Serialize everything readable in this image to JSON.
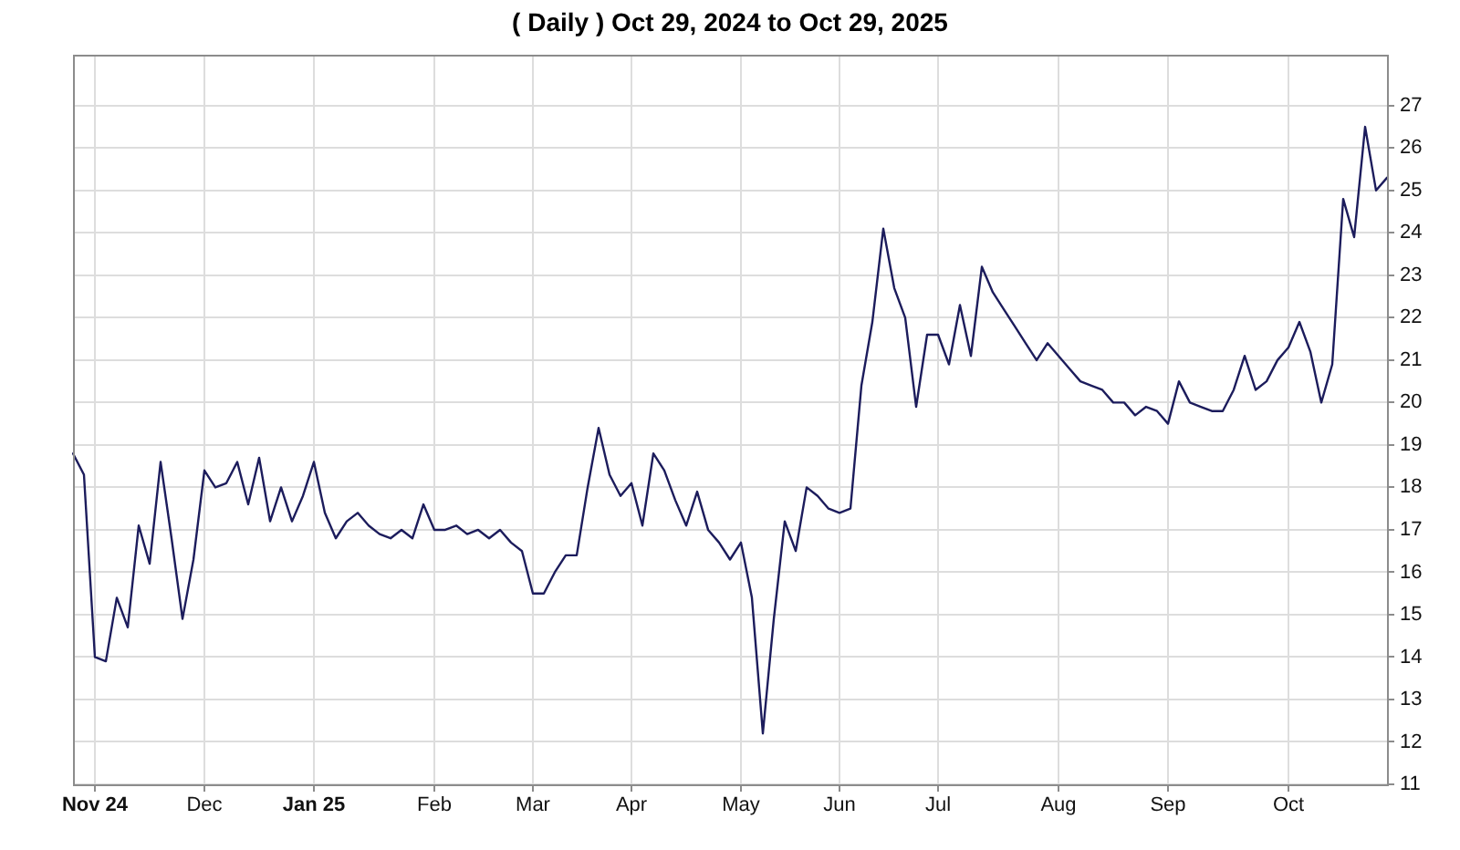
{
  "chart_data": {
    "type": "line",
    "title": "( Daily ) Oct 29, 2024 to Oct 29, 2025",
    "categories": [
      null,
      null,
      "Nov 24",
      null,
      null,
      null,
      null,
      null,
      null,
      null,
      null,
      null,
      "Dec",
      null,
      null,
      null,
      null,
      null,
      null,
      null,
      null,
      null,
      "Jan 25",
      null,
      null,
      null,
      null,
      null,
      null,
      null,
      null,
      null,
      null,
      "Feb",
      null,
      null,
      null,
      null,
      null,
      null,
      null,
      null,
      "Mar",
      null,
      null,
      null,
      null,
      null,
      null,
      null,
      null,
      "Apr",
      null,
      null,
      null,
      null,
      null,
      null,
      null,
      null,
      null,
      "May",
      null,
      null,
      null,
      null,
      null,
      null,
      null,
      null,
      "Jun",
      null,
      null,
      null,
      null,
      null,
      null,
      null,
      null,
      "Jul",
      null,
      null,
      null,
      null,
      null,
      null,
      null,
      null,
      null,
      null,
      "Aug",
      null,
      null,
      null,
      null,
      null,
      null,
      null,
      null,
      null,
      "Sep",
      null,
      null,
      null,
      null,
      null,
      null,
      null,
      null,
      null,
      null,
      "Oct",
      null,
      null,
      null,
      null,
      null,
      null,
      null,
      null,
      null
    ],
    "series": [
      {
        "color": "#1c1c5c",
        "values": [
          18.8,
          18.3,
          14.0,
          13.9,
          15.4,
          14.7,
          17.1,
          16.2,
          18.6,
          16.8,
          14.9,
          16.3,
          18.4,
          18.0,
          18.1,
          18.6,
          17.6,
          18.7,
          17.2,
          18.0,
          17.2,
          17.8,
          18.6,
          17.4,
          16.8,
          17.2,
          17.4,
          17.1,
          16.9,
          16.8,
          17.0,
          16.8,
          17.6,
          17.0,
          17.0,
          17.1,
          16.9,
          17.0,
          16.8,
          17.0,
          16.7,
          16.5,
          15.5,
          15.5,
          16.0,
          16.4,
          16.4,
          18.0,
          19.4,
          18.3,
          17.8,
          18.1,
          17.1,
          18.8,
          18.4,
          17.7,
          17.1,
          17.9,
          17.0,
          16.7,
          16.3,
          16.7,
          15.4,
          12.2,
          14.9,
          17.2,
          16.5,
          18.0,
          17.8,
          17.5,
          17.4,
          17.5,
          20.4,
          21.9,
          24.1,
          22.7,
          22.0,
          19.9,
          21.6,
          21.6,
          20.9,
          22.3,
          21.1,
          23.2,
          22.6,
          22.2,
          21.8,
          21.4,
          21.0,
          21.4,
          21.1,
          20.8,
          20.5,
          20.4,
          20.3,
          20.0,
          20.0,
          19.7,
          19.9,
          19.8,
          19.5,
          20.5,
          20.0,
          19.9,
          19.8,
          19.8,
          20.3,
          21.1,
          20.3,
          20.5,
          21.0,
          21.3,
          21.9,
          21.2,
          20.0,
          20.9,
          24.8,
          23.9,
          26.5,
          25.0,
          25.3
        ]
      }
    ],
    "ylim": [
      11,
      28.2
    ],
    "yticks": [
      11,
      12,
      13,
      14,
      15,
      16,
      17,
      18,
      19,
      20,
      21,
      22,
      23,
      24,
      25,
      26,
      27
    ],
    "grid": true,
    "line_style": "solid"
  }
}
